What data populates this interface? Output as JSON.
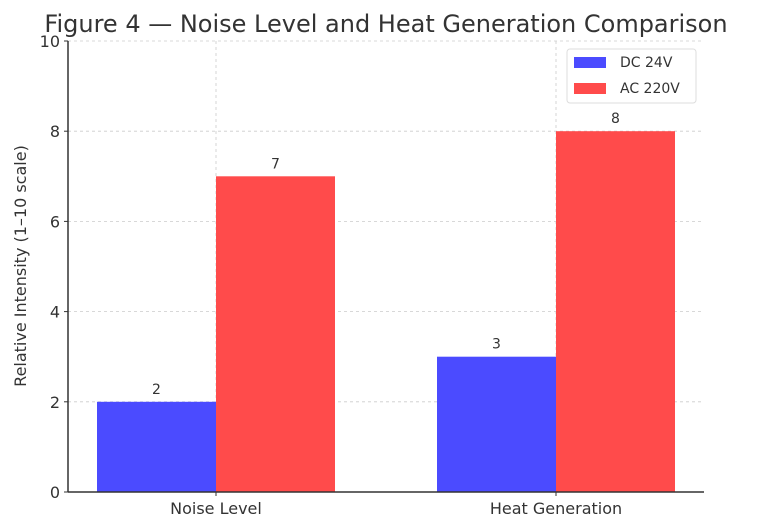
{
  "chart_data": {
    "type": "bar",
    "title": "Figure 4 — Noise Level and Heat Generation Comparison",
    "xlabel": "",
    "ylabel": "Relative Intensity (1–10 scale)",
    "ylim": [
      0,
      10
    ],
    "yticks": [
      0,
      2,
      4,
      6,
      8,
      10
    ],
    "categories": [
      "Noise Level",
      "Heat Generation"
    ],
    "series": [
      {
        "name": "DC 24V",
        "values": [
          2,
          3
        ],
        "color": "#4b4bff"
      },
      {
        "name": "AC 220V",
        "values": [
          7,
          8
        ],
        "color": "#ff4b4b"
      }
    ],
    "grid": true,
    "legend": "top-right",
    "data_labels": true
  }
}
